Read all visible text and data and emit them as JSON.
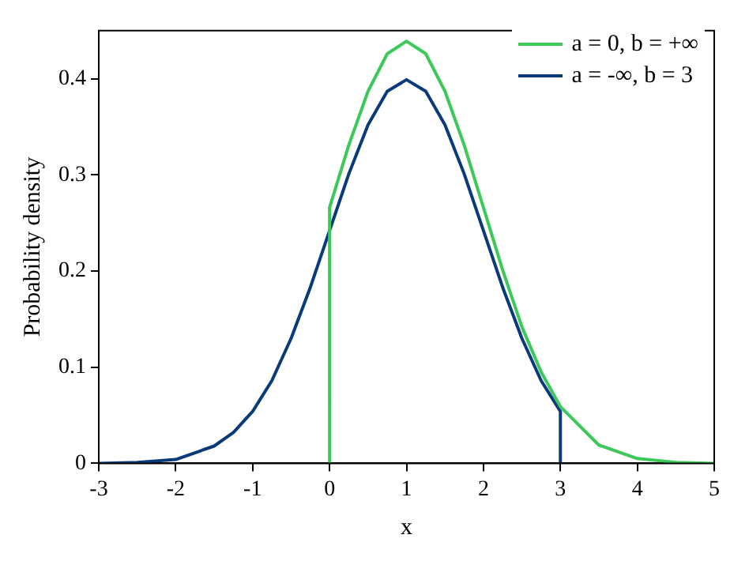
{
  "chart_data": {
    "type": "line",
    "xlabel": "x",
    "ylabel": "Probability density",
    "xlim": [
      -3,
      5
    ],
    "xticks": [
      -3,
      -2,
      -1,
      0,
      1,
      2,
      3,
      4,
      5
    ],
    "ylim": [
      0,
      0.45
    ],
    "yticks": [
      0,
      0.1,
      0.2,
      0.3,
      0.4
    ],
    "legend": "top right",
    "grid": false,
    "marker": "none",
    "line_style": "solid",
    "series": [
      {
        "name": "a = 0, b = +∞",
        "color": "#3dc95a",
        "x": [
          0,
          0,
          0.25,
          0.5,
          0.75,
          1,
          1.25,
          1.5,
          1.75,
          2,
          2.25,
          2.5,
          2.75,
          3,
          3.5,
          4,
          4.5,
          5
        ],
        "values": [
          0,
          0.266,
          0.331,
          0.387,
          0.426,
          0.439,
          0.426,
          0.387,
          0.331,
          0.266,
          0.201,
          0.142,
          0.095,
          0.059,
          0.019,
          0.005,
          0.001,
          0
        ]
      },
      {
        "name": "a = -∞, b = 3",
        "color": "#0b3a7a",
        "x": [
          -3,
          -2.5,
          -2,
          -1.5,
          -1.25,
          -1,
          -0.75,
          -0.5,
          -0.25,
          0,
          0.25,
          0.5,
          0.75,
          1,
          1.25,
          1.5,
          1.75,
          2,
          2.25,
          2.5,
          2.75,
          3,
          3
        ],
        "values": [
          0,
          0.001,
          0.004,
          0.018,
          0.032,
          0.054,
          0.086,
          0.13,
          0.183,
          0.242,
          0.301,
          0.352,
          0.387,
          0.399,
          0.387,
          0.352,
          0.301,
          0.242,
          0.183,
          0.13,
          0.086,
          0.054,
          0
        ]
      }
    ]
  }
}
